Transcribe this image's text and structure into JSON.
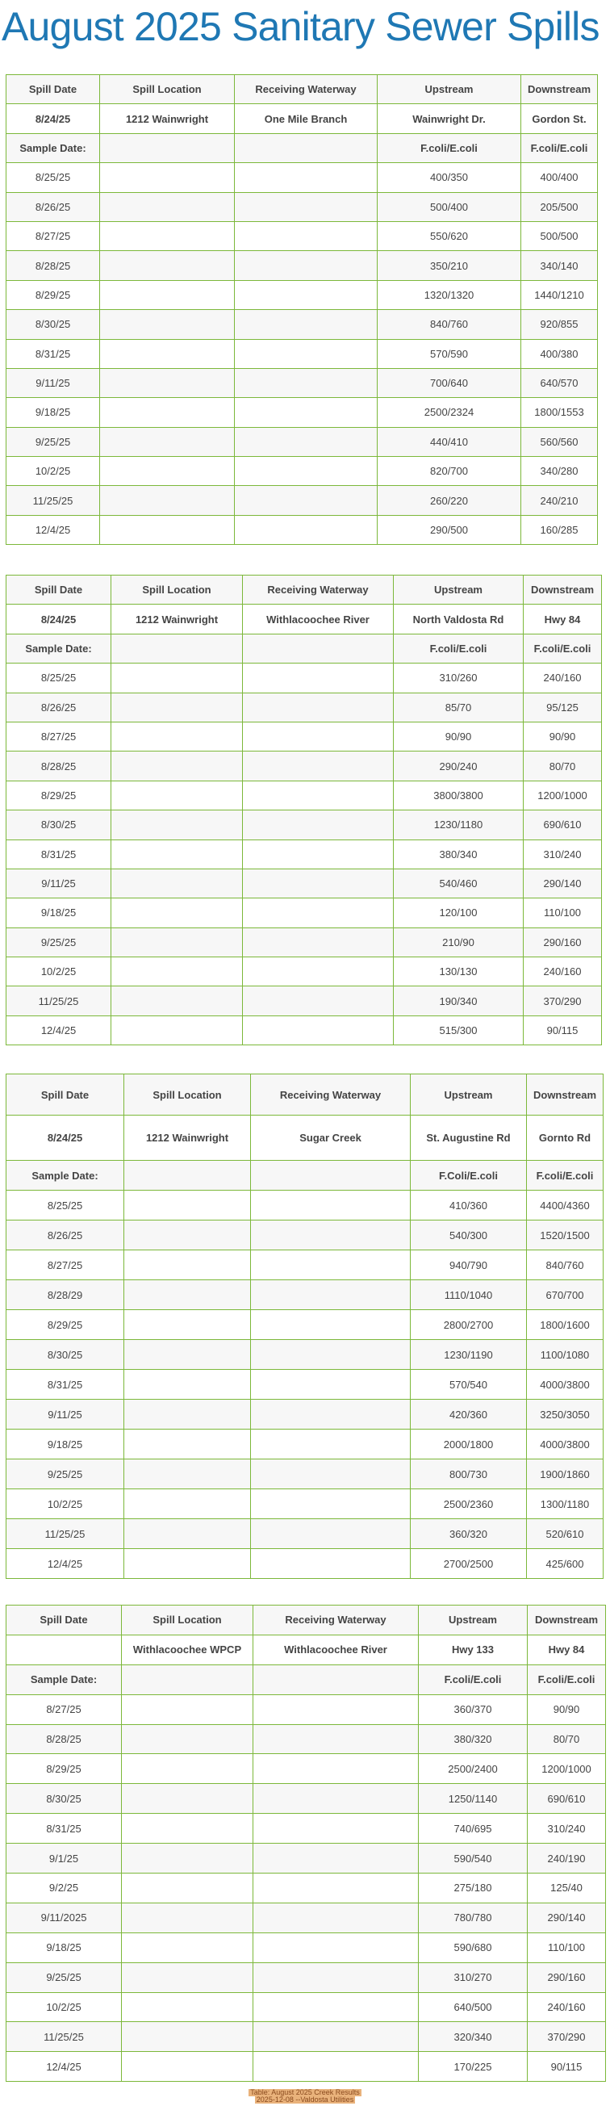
{
  "title": "August 2025 Sanitary Sewer Spills",
  "tables": [
    {
      "headers": [
        "Spill Date",
        "Spill Location",
        "Receiving Waterway",
        "Upstream",
        "Downstream"
      ],
      "spill": [
        "8/24/25",
        "1212 Wainwright",
        "One Mile Branch",
        "Wainwright Dr.",
        "Gordon St."
      ],
      "label": [
        "Sample Date:",
        "",
        "",
        "F.coli/E.coli",
        "F.coli/E.coli"
      ],
      "rows": [
        [
          "8/25/25",
          "",
          "",
          "400/350",
          "400/400"
        ],
        [
          "8/26/25",
          "",
          "",
          "500/400",
          "205/500"
        ],
        [
          "8/27/25",
          "",
          "",
          "550/620",
          "500/500"
        ],
        [
          "8/28/25",
          "",
          "",
          "350/210",
          "340/140"
        ],
        [
          "8/29/25",
          "",
          "",
          "1320/1320",
          "1440/1210"
        ],
        [
          "8/30/25",
          "",
          "",
          "840/760",
          "920/855"
        ],
        [
          "8/31/25",
          "",
          "",
          "570/590",
          "400/380"
        ],
        [
          "9/11/25",
          "",
          "",
          "700/640",
          "640/570"
        ],
        [
          "9/18/25",
          "",
          "",
          "2500/2324",
          "1800/1553"
        ],
        [
          "9/25/25",
          "",
          "",
          "440/410",
          "560/560"
        ],
        [
          "10/2/25",
          "",
          "",
          "820/700",
          "340/280"
        ],
        [
          "11/25/25",
          "",
          "",
          "260/220",
          "240/210"
        ],
        [
          "12/4/25",
          "",
          "",
          "290/500",
          "160/285"
        ]
      ]
    },
    {
      "headers": [
        "Spill Date",
        "Spill Location",
        "Receiving Waterway",
        "Upstream",
        "Downstream"
      ],
      "spill": [
        "8/24/25",
        "1212 Wainwright",
        "Withlacoochee River",
        "North Valdosta Rd",
        "Hwy 84"
      ],
      "label": [
        "Sample Date:",
        "",
        "",
        "F.coli/E.coli",
        "F.coli/E.coli"
      ],
      "rows": [
        [
          "8/25/25",
          "",
          "",
          "310/260",
          "240/160"
        ],
        [
          "8/26/25",
          "",
          "",
          "85/70",
          "95/125"
        ],
        [
          "8/27/25",
          "",
          "",
          "90/90",
          "90/90"
        ],
        [
          "8/28/25",
          "",
          "",
          "290/240",
          "80/70"
        ],
        [
          "8/29/25",
          "",
          "",
          "3800/3800",
          "1200/1000"
        ],
        [
          "8/30/25",
          "",
          "",
          "1230/1180",
          "690/610"
        ],
        [
          "8/31/25",
          "",
          "",
          "380/340",
          "310/240"
        ],
        [
          "9/11/25",
          "",
          "",
          "540/460",
          "290/140"
        ],
        [
          "9/18/25",
          "",
          "",
          "120/100",
          "110/100"
        ],
        [
          "9/25/25",
          "",
          "",
          "210/90",
          "290/160"
        ],
        [
          "10/2/25",
          "",
          "",
          "130/130",
          "240/160"
        ],
        [
          "11/25/25",
          "",
          "",
          "190/340",
          "370/290"
        ],
        [
          "12/4/25",
          "",
          "",
          "515/300",
          "90/115"
        ]
      ]
    },
    {
      "headers": [
        "Spill Date",
        "Spill Location",
        "Receiving Waterway",
        "Upstream",
        "Downstream"
      ],
      "spill": [
        "8/24/25",
        "1212 Wainwright",
        "Sugar Creek",
        "St. Augustine Rd",
        "Gornto Rd"
      ],
      "label": [
        "Sample Date:",
        "",
        "",
        "F.Coli/E.coli",
        "F.coli/E.coli"
      ],
      "rows": [
        [
          "8/25/25",
          "",
          "",
          "410/360",
          "4400/4360"
        ],
        [
          "8/26/25",
          "",
          "",
          "540/300",
          "1520/1500"
        ],
        [
          "8/27/25",
          "",
          "",
          "940/790",
          "840/760"
        ],
        [
          "8/28/29",
          "",
          "",
          "1110/1040",
          "670/700"
        ],
        [
          "8/29/25",
          "",
          "",
          "2800/2700",
          "1800/1600"
        ],
        [
          "8/30/25",
          "",
          "",
          "1230/1190",
          "1100/1080"
        ],
        [
          "8/31/25",
          "",
          "",
          "570/540",
          "4000/3800"
        ],
        [
          "9/11/25",
          "",
          "",
          "420/360",
          "3250/3050"
        ],
        [
          "9/18/25",
          "",
          "",
          "2000/1800",
          "4000/3800"
        ],
        [
          "9/25/25",
          "",
          "",
          "800/730",
          "1900/1860"
        ],
        [
          "10/2/25",
          "",
          "",
          "2500/2360",
          "1300/1180"
        ],
        [
          "11/25/25",
          "",
          "",
          "360/320",
          "520/610"
        ],
        [
          "12/4/25",
          "",
          "",
          "2700/2500",
          "425/600"
        ]
      ]
    },
    {
      "headers": [
        "Spill Date",
        "Spill Location",
        "Receiving Waterway",
        "Upstream",
        "Downstream"
      ],
      "spill": [
        "",
        "Withlacoochee WPCP",
        "Withlacoochee River",
        "Hwy 133",
        "Hwy 84"
      ],
      "label": [
        "Sample Date:",
        "",
        "",
        "F.coli/E.coli",
        "F.coli/E.coli"
      ],
      "rows": [
        [
          "8/27/25",
          "",
          "",
          "360/370",
          "90/90"
        ],
        [
          "8/28/25",
          "",
          "",
          "380/320",
          "80/70"
        ],
        [
          "8/29/25",
          "",
          "",
          "2500/2400",
          "1200/1000"
        ],
        [
          "8/30/25",
          "",
          "",
          "1250/1140",
          "690/610"
        ],
        [
          "8/31/25",
          "",
          "",
          "740/695",
          "310/240"
        ],
        [
          "9/1/25",
          "",
          "",
          "590/540",
          "240/190"
        ],
        [
          "9/2/25",
          "",
          "",
          "275/180",
          "125/40"
        ],
        [
          "9/11/2025",
          "",
          "",
          "780/780",
          "290/140"
        ],
        [
          "9/18/25",
          "",
          "",
          "590/680",
          "110/100"
        ],
        [
          "9/25/25",
          "",
          "",
          "310/270",
          "290/160"
        ],
        [
          "10/2/25",
          "",
          "",
          "640/500",
          "240/160"
        ],
        [
          "11/25/25",
          "",
          "",
          "320/340",
          "370/290"
        ],
        [
          "12/4/25",
          "",
          "",
          "170/225",
          "90/115"
        ]
      ]
    }
  ],
  "footer": {
    "line1": "Table: August 2025 Creek Results",
    "line2": "2025-12-08 --Valdosta Utilities"
  },
  "colors": {
    "title": "#1f78b4",
    "border": "#7cb83a",
    "stripe": "#f7f7f7",
    "footer_bg": "#e9b27b"
  }
}
